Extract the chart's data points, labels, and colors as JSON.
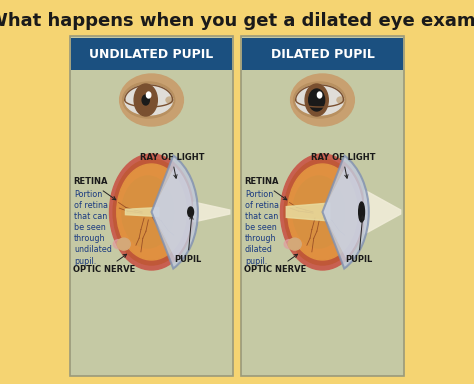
{
  "title": "What happens when you get a dilated eye exam?",
  "title_bg": "#F5D472",
  "title_color": "#1a1a1a",
  "panel_bg": "#C5C9A4",
  "header_bg": "#1B5080",
  "header_color": "#FFFFFF",
  "left_header": "UNDILATED PUPIL",
  "right_header": "DILATED PUPIL",
  "left_desc": "Portion\nof retina\nthat can\nbe seen\nthrough\nundilated\npupil.",
  "right_desc": "Portion\nof retina\nthat can\nbe seen\nthrough\ndilated\npupil.",
  "outer_border": "#9A9A7A",
  "eye_outer": "#C05A30",
  "eye_mid": "#C8703A",
  "eye_inner": "#D4843A",
  "eye_orange": "#E09040",
  "cornea_color": "#B8C0D0",
  "cornea_edge": "#8090B0",
  "ray_color": "#E8E0B0",
  "pupil_color": "#1a1a1a",
  "nerve_color": "#D4A878",
  "skin_color": "#C8A070",
  "iris_color": "#7A5030",
  "label_color": "#1a1a1a",
  "desc_color": "#1A3A80",
  "title_fontsize": 13,
  "header_fontsize": 9,
  "label_fontsize": 6,
  "desc_fontsize": 5.8
}
